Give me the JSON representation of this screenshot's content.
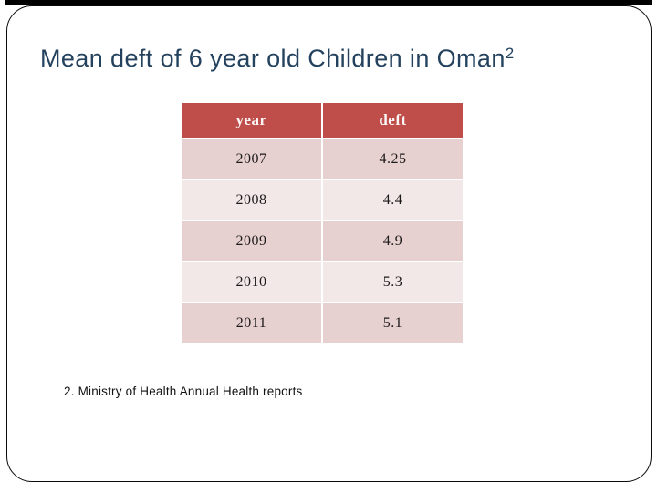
{
  "slide": {
    "title": "Mean deft of 6 year old Children in Oman",
    "title_superscript": "2",
    "footnote": "2. Ministry of Health Annual Health reports"
  },
  "chart_data": {
    "type": "table",
    "title": "Mean deft of 6 year old Children in Oman",
    "columns": [
      "year",
      "deft"
    ],
    "rows": [
      [
        "2007",
        "4.25"
      ],
      [
        "2008",
        "4.4"
      ],
      [
        "2009",
        "4.9"
      ],
      [
        "2010",
        "5.3"
      ],
      [
        "2011",
        "5.1"
      ]
    ]
  },
  "colors": {
    "header_bg": "#bf4e4b",
    "row_odd_bg": "#e7d1d0",
    "row_even_bg": "#f2e8e7",
    "title_text": "#24425e",
    "border": "#0a0a0a"
  }
}
